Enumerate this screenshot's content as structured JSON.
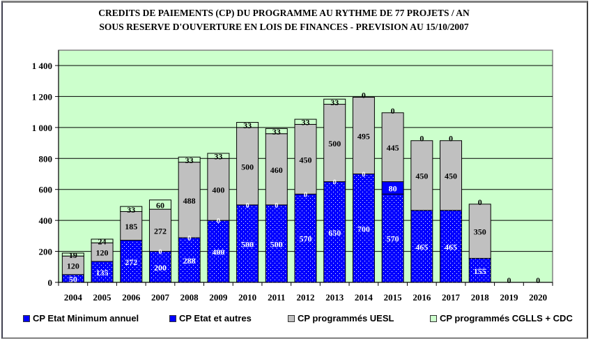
{
  "chart_data": {
    "type": "bar",
    "stacked": true,
    "title": "CREDITS DE PAIEMENTS (CP) DU PROGRAMME AU RYTHME DE 77 PROJETS / AN",
    "subtitle": "SOUS RESERVE D'OUVERTURE EN LOIS DE FINANCES - PREVISION AU 15/10/2007",
    "xlabel": "",
    "ylabel": "",
    "ylim": [
      0,
      1400
    ],
    "yticks": [
      0,
      200,
      400,
      600,
      800,
      1000,
      1200,
      1400
    ],
    "ytick_labels": [
      "0",
      "200",
      "400",
      "600",
      "800",
      "1 000",
      "1 200",
      "1 400"
    ],
    "grid": true,
    "legend_position": "bottom",
    "plot_background": "#CCFFCC",
    "categories": [
      "2004",
      "2005",
      "2006",
      "2007",
      "2008",
      "2009",
      "2010",
      "2011",
      "2012",
      "2013",
      "2014",
      "2015",
      "2016",
      "2017",
      "2018",
      "2019",
      "2020"
    ],
    "series": [
      {
        "name": "CP Etat Minimum annuel",
        "color": "#0000FF",
        "pattern": "dotted",
        "values": [
          50,
          135,
          272,
          200,
          288,
          400,
          500,
          500,
          570,
          650,
          700,
          570,
          465,
          465,
          155,
          0,
          0
        ],
        "labels": [
          "50",
          "135",
          "272",
          "200",
          "288",
          "400",
          "500",
          "500",
          "570",
          "650",
          "700",
          "570",
          "465",
          "465",
          "155",
          "",
          ""
        ]
      },
      {
        "name": "CP Etat et autres",
        "color": "#0000FF",
        "pattern": "solid",
        "values": [
          0,
          0,
          0,
          0,
          0,
          0,
          0,
          0,
          0,
          0,
          0,
          80,
          0,
          0,
          0,
          0,
          0
        ],
        "labels": [
          "",
          "",
          "",
          "0",
          "0",
          "0",
          "0",
          "0",
          "0",
          "0",
          "0",
          "80",
          "",
          "",
          "",
          "",
          ""
        ]
      },
      {
        "name": "CP programmés UESL",
        "color": "#C0C0C0",
        "pattern": "solid",
        "values": [
          120,
          120,
          185,
          272,
          488,
          400,
          500,
          460,
          450,
          500,
          495,
          445,
          450,
          450,
          350,
          0,
          0
        ],
        "labels": [
          "120",
          "120",
          "185",
          "272",
          "488",
          "400",
          "500",
          "460",
          "450",
          "500",
          "495",
          "445",
          "450",
          "450",
          "350",
          "",
          ""
        ]
      },
      {
        "name": "CP programmés CGLLS + CDC",
        "color": "#CCFFCC",
        "pattern": "solid",
        "values": [
          19,
          24,
          33,
          60,
          33,
          33,
          33,
          33,
          33,
          33,
          0,
          0,
          0,
          0,
          0,
          0,
          0
        ],
        "labels": [
          "19",
          "24",
          "33",
          "60",
          "33",
          "33",
          "33",
          "33",
          "33",
          "33",
          "0",
          "0",
          "0",
          "0",
          "0",
          "0",
          "0"
        ]
      }
    ]
  }
}
